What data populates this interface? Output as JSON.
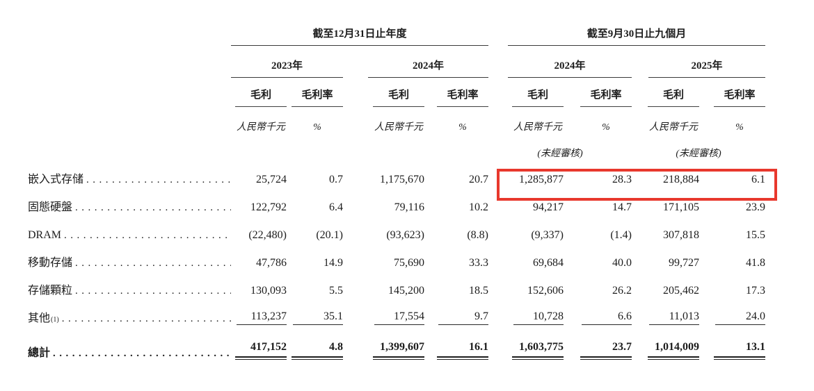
{
  "table": {
    "group_headers": [
      "截至12月31日止年度",
      "截至9月30日止九個月"
    ],
    "year_headers": [
      "2023年",
      "2024年",
      "2024年",
      "2025年"
    ],
    "col_header_gp": "毛利",
    "col_header_gm": "毛利率",
    "unit_currency": "人民幣千元",
    "unit_percent": "%",
    "unaudited": "(未經審核)",
    "rows": [
      {
        "label": "嵌入式存储",
        "sup": "",
        "values": [
          "25,724",
          "0.7",
          "1,175,670",
          "20.7",
          "1,285,877",
          "28.3",
          "218,884",
          "6.1"
        ]
      },
      {
        "label": "固態硬盤",
        "sup": "",
        "values": [
          "122,792",
          "6.4",
          "79,116",
          "10.2",
          "94,217",
          "14.7",
          "171,105",
          "23.9"
        ]
      },
      {
        "label": "DRAM",
        "sup": "",
        "values": [
          "(22,480)",
          "(20.1)",
          "(93,623)",
          "(8.8)",
          "(9,337)",
          "(1.4)",
          "307,818",
          "15.5"
        ]
      },
      {
        "label": "移動存儲",
        "sup": "",
        "values": [
          "47,786",
          "14.9",
          "75,690",
          "33.3",
          "69,684",
          "40.0",
          "99,727",
          "41.8"
        ]
      },
      {
        "label": "存儲顆粒",
        "sup": "",
        "values": [
          "130,093",
          "5.5",
          "145,200",
          "18.5",
          "152,606",
          "26.2",
          "205,462",
          "17.3"
        ]
      },
      {
        "label": "其他",
        "sup": "(1)",
        "values": [
          "113,237",
          "35.1",
          "17,554",
          "9.7",
          "10,728",
          "6.6",
          "11,013",
          "24.0"
        ]
      },
      {
        "label": "總計",
        "sup": "",
        "values": [
          "417,152",
          "4.8",
          "1,399,607",
          "16.1",
          "1,603,775",
          "23.7",
          "1,014,009",
          "13.1"
        ]
      }
    ]
  },
  "highlight_box": {
    "color": "#e8382d",
    "highlighted_row": "嵌入式存储",
    "highlighted_values": [
      "1,285,877",
      "28.3",
      "218,884",
      "6.1"
    ]
  }
}
